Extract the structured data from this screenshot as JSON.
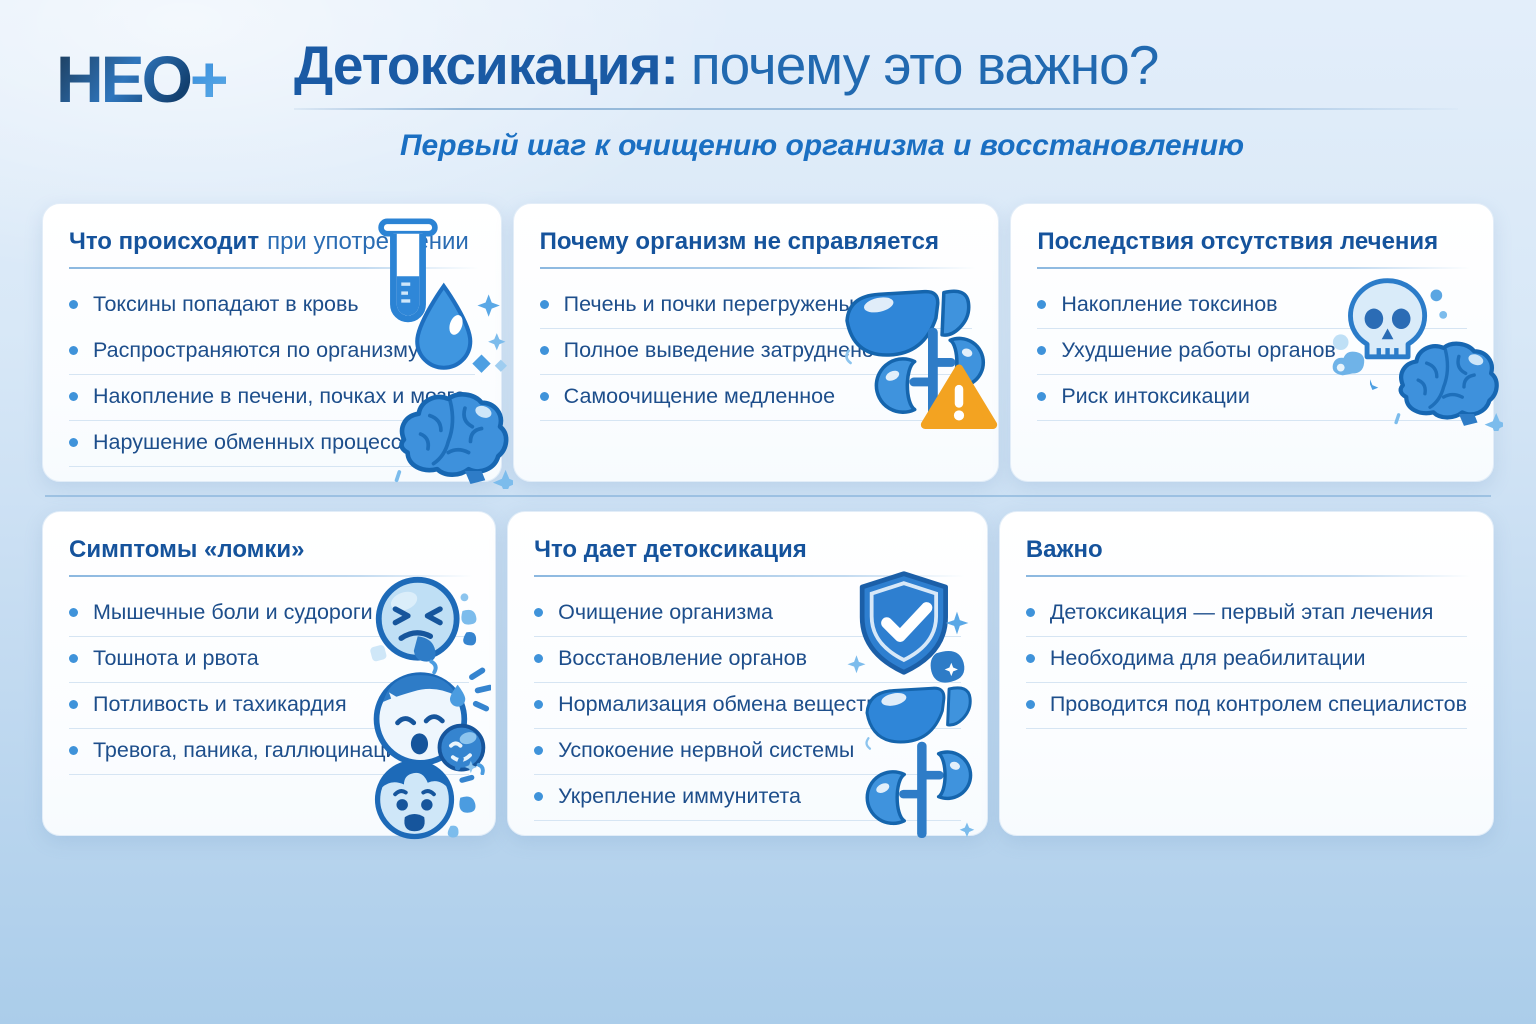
{
  "header": {
    "logo_text": "НЕО",
    "logo_plus": "+",
    "title_bold": "Детоксикация:",
    "title_rest": "почему это важно?",
    "subtitle": "Первый шаг к очищению организма и восстановлению"
  },
  "colors": {
    "accent_blue": "#2e7fd0",
    "title_blue": "#1a5aa4",
    "card_title_blue": "#15539c",
    "bullet_text_blue": "#1d4e8b",
    "bullet_dot_blue": "#3f93da",
    "subtitle_blue": "#1a6fc2",
    "warning_orange": "#f3a321",
    "background_top": "#e3eefa",
    "background_bottom": "#abcdea",
    "card_background": "#ffffff"
  },
  "cards": [
    {
      "id": "what-happens",
      "title_bold": "Что происходит",
      "title_rest": "при употреблении",
      "items": [
        "Токсины попадают в кровь",
        "Распространяются по организму",
        "Накопление в печени, почках и мозге",
        "Нарушение обменных процессов"
      ],
      "icons": [
        "test-tube-icon",
        "water-drop-icon",
        "brain-icon"
      ]
    },
    {
      "id": "why-body-cannot-cope",
      "title_bold": "Почему организм не справляется",
      "title_rest": "",
      "items": [
        "Печень и почки перегружены",
        "Полное выведение затруднено",
        "Самоочищение медленное"
      ],
      "icons": [
        "liver-icon",
        "kidneys-icon",
        "warning-icon"
      ]
    },
    {
      "id": "consequences-without-treatment",
      "title_bold": "Последствия отсутствия лечения",
      "title_rest": "",
      "items": [
        "Накопление токсинов",
        "Ухудшение работы органов",
        "Риск интоксикации"
      ],
      "icons": [
        "skull-icon",
        "brain-icon"
      ]
    },
    {
      "id": "withdrawal-symptoms",
      "title_bold": "Симптомы «ломки»",
      "title_rest": "",
      "items": [
        "Мышечные боли и судороги",
        "Тошнота и рвота",
        "Потливость и тахикардия",
        "Тревога, паника, галлюцинации"
      ],
      "icons": [
        "nauseated-face-icon",
        "sweating-face-icon",
        "scared-face-icon"
      ]
    },
    {
      "id": "detox-benefits",
      "title_bold": "Что дает детоксикация",
      "title_rest": "",
      "items": [
        "Очищение организма",
        "Восстановление органов",
        "Нормализация обмена веществ",
        "Успокоение нервной системы",
        "Укрепление иммунитета"
      ],
      "icons": [
        "shield-check-icon",
        "liver-icon",
        "kidneys-icon"
      ]
    },
    {
      "id": "important",
      "title_bold": "Важно",
      "title_rest": "",
      "items": [
        "Детоксикация — первый этап лечения",
        "Необходима для реабилитации",
        "Проводится под контролем специалистов"
      ],
      "icons": []
    }
  ]
}
